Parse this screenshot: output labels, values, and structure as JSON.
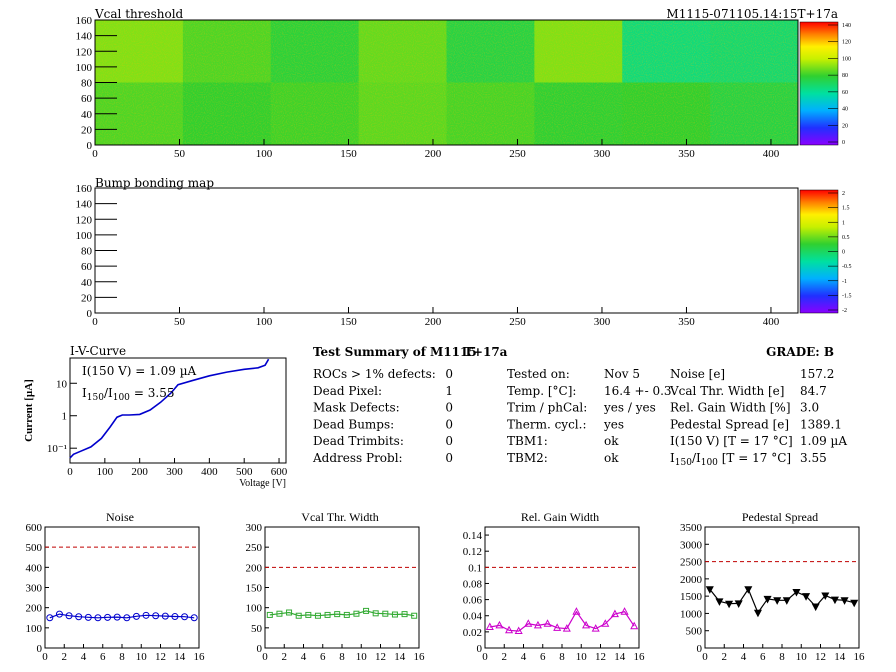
{
  "header": {
    "run_id": "M1115-071105.14:15T+17a"
  },
  "vcal_map": {
    "title": "Vcal threshold",
    "x_ticks": [
      "0",
      "50",
      "100",
      "150",
      "200",
      "250",
      "300",
      "350",
      "400"
    ],
    "y_ticks": [
      "0",
      "20",
      "40",
      "60",
      "80",
      "100",
      "120",
      "140",
      "160"
    ],
    "palette_ticks": [
      "0",
      "20",
      "40",
      "60",
      "80",
      "100",
      "120",
      "140"
    ],
    "xlim": [
      0,
      416
    ],
    "ylim": [
      0,
      160
    ],
    "zlim": [
      0,
      150
    ],
    "roc_columns": 8,
    "roc_rows": 2,
    "roc_levels_top": [
      95,
      88,
      82,
      91,
      80,
      95,
      70,
      72
    ],
    "roc_levels_bottom": [
      88,
      84,
      86,
      90,
      87,
      83,
      84,
      80
    ]
  },
  "bump_map": {
    "title": "Bump bonding map",
    "x_ticks": [
      "0",
      "50",
      "100",
      "150",
      "200",
      "250",
      "300",
      "350",
      "400"
    ],
    "y_ticks": [
      "0",
      "20",
      "40",
      "60",
      "80",
      "100",
      "120",
      "140",
      "160"
    ],
    "palette_ticks": [
      "-2",
      "-1.5",
      "-1",
      "-0.5",
      "0",
      "0.5",
      "1",
      "1.5",
      "2"
    ]
  },
  "iv_curve": {
    "title": "I-V-Curve",
    "ylabel": "Current [µA]",
    "xlabel": "Voltage [V]",
    "x_ticks": [
      "0",
      "100",
      "200",
      "300",
      "400",
      "500",
      "600"
    ],
    "y_ticks": [
      "10⁻¹",
      "1",
      "10"
    ],
    "legend_i150": "I(150 V) = 1.09 µA",
    "legend_ratio_prefix": "I",
    "legend_ratio_sub1": "150",
    "legend_ratio_slash": "/I",
    "legend_ratio_sub2": "100",
    "legend_ratio_value": "=  3.55",
    "points": [
      [
        0,
        0.05
      ],
      [
        10,
        0.065
      ],
      [
        30,
        0.08
      ],
      [
        60,
        0.11
      ],
      [
        90,
        0.2
      ],
      [
        115,
        0.45
      ],
      [
        135,
        0.9
      ],
      [
        150,
        1.05
      ],
      [
        170,
        1.05
      ],
      [
        200,
        1.1
      ],
      [
        230,
        1.5
      ],
      [
        260,
        2.6
      ],
      [
        290,
        5
      ],
      [
        310,
        9
      ],
      [
        350,
        12
      ],
      [
        400,
        17
      ],
      [
        450,
        22
      ],
      [
        500,
        27
      ],
      [
        540,
        30
      ],
      [
        560,
        36
      ],
      [
        570,
        55
      ]
    ]
  },
  "summary": {
    "title": "Test Summary of M1115",
    "tag": "T+17a",
    "grade_label": "GRADE:  B",
    "col1": [
      {
        "label": "ROCs > 1% defects:",
        "value": "0"
      },
      {
        "label": "Dead Pixel:",
        "value": "1"
      },
      {
        "label": "Mask Defects:",
        "value": "0"
      },
      {
        "label": "Dead Bumps:",
        "value": "0"
      },
      {
        "label": "Dead Trimbits:",
        "value": "0"
      },
      {
        "label": "Address Probl:",
        "value": "0"
      }
    ],
    "col2": [
      {
        "label": "Tested on:",
        "value": "Nov 5"
      },
      {
        "label": "Temp. [°C]:",
        "value": "16.4 +- 0.3"
      },
      {
        "label": "Trim / phCal:",
        "value": "yes / yes"
      },
      {
        "label": "Therm. cycl.:",
        "value": "yes"
      },
      {
        "label": "TBM1:",
        "value": "ok"
      },
      {
        "label": "TBM2:",
        "value": "ok"
      }
    ],
    "col3": [
      {
        "label": "Noise [e]",
        "value": "157.2"
      },
      {
        "label": "Vcal Thr. Width [e]",
        "value": "84.7"
      },
      {
        "label": "Rel. Gain Width [%]",
        "value": "3.0"
      },
      {
        "label": "Pedestal Spread [e]",
        "value": "1389.1"
      },
      {
        "label": "I(150 V) [T = 17 °C]",
        "value": "1.09 µA"
      }
    ],
    "col3_last": {
      "prefix": "I",
      "sub1": "150",
      "slash": "/I",
      "sub2": "100",
      "suffix": "  [T = 17 °C]",
      "value": "3.55"
    }
  },
  "chart_data": [
    {
      "type": "scatter",
      "title": "Noise",
      "color": "#0000cc",
      "marker": "circle",
      "x": [
        0,
        1,
        2,
        3,
        4,
        5,
        6,
        7,
        8,
        9,
        10,
        11,
        12,
        13,
        14,
        15
      ],
      "values": [
        150,
        168,
        160,
        155,
        152,
        150,
        152,
        153,
        150,
        157,
        162,
        160,
        158,
        156,
        155,
        150
      ],
      "ylim": [
        0,
        600
      ],
      "threshold": 500,
      "x_ticks": [
        "0",
        "2",
        "4",
        "6",
        "8",
        "10",
        "12",
        "14",
        "16"
      ],
      "y_ticks": [
        "0",
        "100",
        "200",
        "300",
        "400",
        "500",
        "600"
      ]
    },
    {
      "type": "scatter",
      "title": "Vcal Thr. Width",
      "color": "#33aa33",
      "marker": "square",
      "x": [
        0,
        1,
        2,
        3,
        4,
        5,
        6,
        7,
        8,
        9,
        10,
        11,
        12,
        13,
        14,
        15
      ],
      "values": [
        82,
        85,
        88,
        80,
        82,
        80,
        82,
        84,
        82,
        85,
        92,
        86,
        85,
        83,
        84,
        80
      ],
      "ylim": [
        0,
        300
      ],
      "threshold": 200,
      "x_ticks": [
        "0",
        "2",
        "4",
        "6",
        "8",
        "10",
        "12",
        "14",
        "16"
      ],
      "y_ticks": [
        "0",
        "50",
        "100",
        "150",
        "200",
        "250",
        "300"
      ]
    },
    {
      "type": "line",
      "title": "Rel. Gain Width",
      "color": "#cc00cc",
      "marker": "triangle",
      "x": [
        0,
        1,
        2,
        3,
        4,
        5,
        6,
        7,
        8,
        9,
        10,
        11,
        12,
        13,
        14,
        15
      ],
      "values": [
        0.026,
        0.028,
        0.022,
        0.021,
        0.03,
        0.028,
        0.03,
        0.025,
        0.024,
        0.045,
        0.028,
        0.024,
        0.03,
        0.042,
        0.045,
        0.027
      ],
      "ylim": [
        0,
        0.15
      ],
      "threshold": 0.1,
      "x_ticks": [
        "0",
        "2",
        "4",
        "6",
        "8",
        "10",
        "12",
        "14",
        "16"
      ],
      "y_ticks": [
        "0",
        "0.02",
        "0.04",
        "0.06",
        "0.08",
        "0.1",
        "0.12",
        "0.14"
      ]
    },
    {
      "type": "line",
      "title": "Pedestal Spread",
      "color": "#000000",
      "marker": "triangle-down",
      "x": [
        0,
        1,
        2,
        3,
        4,
        5,
        6,
        7,
        8,
        9,
        10,
        11,
        12,
        13,
        14,
        15
      ],
      "values": [
        1700,
        1350,
        1280,
        1290,
        1700,
        1020,
        1420,
        1380,
        1380,
        1620,
        1500,
        1200,
        1520,
        1400,
        1380,
        1310
      ],
      "ylim": [
        0,
        3500
      ],
      "threshold": 2500,
      "x_ticks": [
        "0",
        "2",
        "4",
        "6",
        "8",
        "10",
        "12",
        "14",
        "16"
      ],
      "y_ticks": [
        "0",
        "500",
        "1000",
        "1500",
        "2000",
        "2500",
        "3000",
        "3500"
      ]
    }
  ]
}
